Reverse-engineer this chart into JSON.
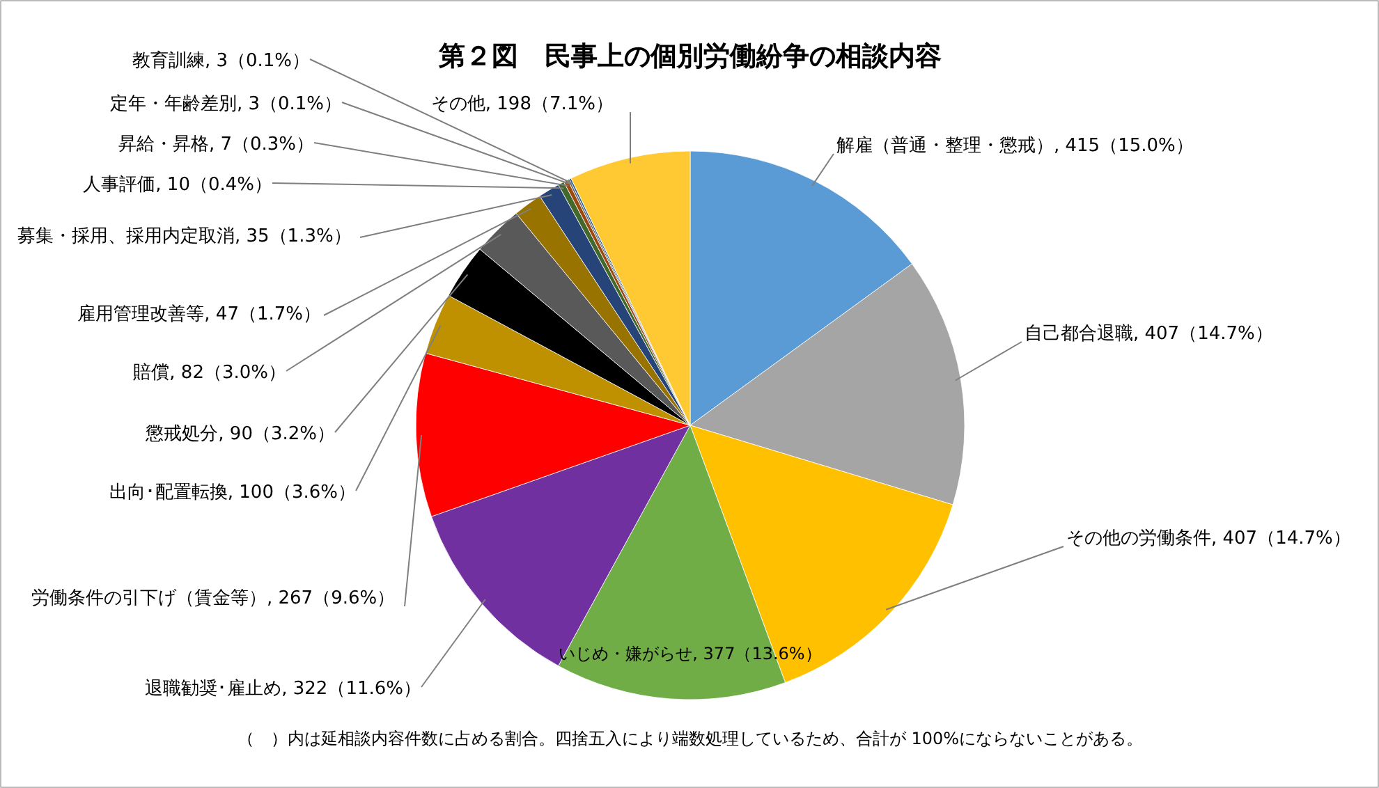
{
  "chart_data": {
    "type": "pie",
    "title": "第２図　民事上の個別労働紛争の相談内容",
    "categories": [
      "解雇（普通・整理・懲戒）",
      "自己都合退職",
      "その他の労働条件",
      "いじめ・嫌がらせ",
      "退職勧奨･雇止め",
      "労働条件の引下げ（賃金等）",
      "出向･配置転換",
      "懲戒処分",
      "賠償",
      "雇用管理改善等",
      "募集・採用、採用内定取消",
      "人事評価",
      "昇給・昇格",
      "定年・年齢差別",
      "教育訓練",
      "その他"
    ],
    "values": [
      415,
      407,
      407,
      377,
      322,
      267,
      100,
      90,
      82,
      47,
      35,
      10,
      7,
      3,
      3,
      198
    ],
    "value_labels": [
      "415（15.0%）",
      "407（14.7%）",
      "407（14.7%）",
      "377（13.6%）",
      "322（11.6%）",
      "267（9.6%）",
      "100（3.6%）",
      "90（3.2%）",
      "82（3.0%）",
      "47（1.7%）",
      "35（1.3%）",
      "10（0.4%）",
      "7（0.3%）",
      "3（0.1%）",
      "3（0.1%）",
      "198（7.1%）"
    ],
    "colors": [
      "#5b9bd5",
      "#a5a5a5",
      "#ffc000",
      "#70ad47",
      "#7030a0",
      "#ff0000",
      "#bf9000",
      "#000000",
      "#595959",
      "#997300",
      "#264478",
      "#43682b",
      "#9e480e",
      "#636363",
      "#255e91",
      "#ffc933"
    ],
    "annotations": [
      "（　）内は延相談内容件数に占める割合。四捨五入により端数処理しているため、合計が 100%にならないことがある。"
    ]
  }
}
